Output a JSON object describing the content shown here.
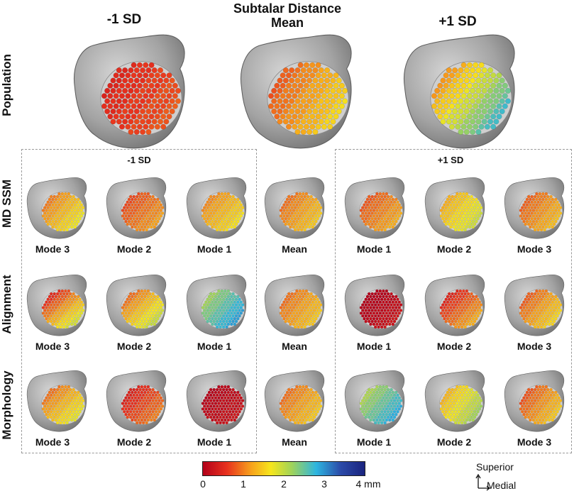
{
  "header": {
    "title_line1": "Subtalar Distance",
    "title_line2": "Mean",
    "minus_sd": "-1 SD",
    "plus_sd": "+1 SD"
  },
  "row_labels": {
    "population": "Population",
    "md_ssm": "MD SSM",
    "alignment": "Alignment",
    "morphology": "Morphology"
  },
  "boxes": {
    "left_title": "-1 SD",
    "right_title": "+1 SD"
  },
  "captions": {
    "mode3": "Mode 3",
    "mode2": "Mode 2",
    "mode1": "Mode 1",
    "mean": "Mean"
  },
  "colorbar": {
    "ticks": [
      "0",
      "1",
      "2",
      "3",
      "4 mm"
    ],
    "colors": [
      "#b2001a",
      "#e8321e",
      "#f7a21b",
      "#f6e61c",
      "#9fd35a",
      "#2db5e0",
      "#2b4aa8",
      "#1a237e"
    ]
  },
  "orientation": {
    "superior": "Superior",
    "medial": "Medial"
  },
  "palette": {
    "bone": "#9d9d9d",
    "bone_dark": "#6e6e6e",
    "box_border": "#9a9a9a"
  }
}
